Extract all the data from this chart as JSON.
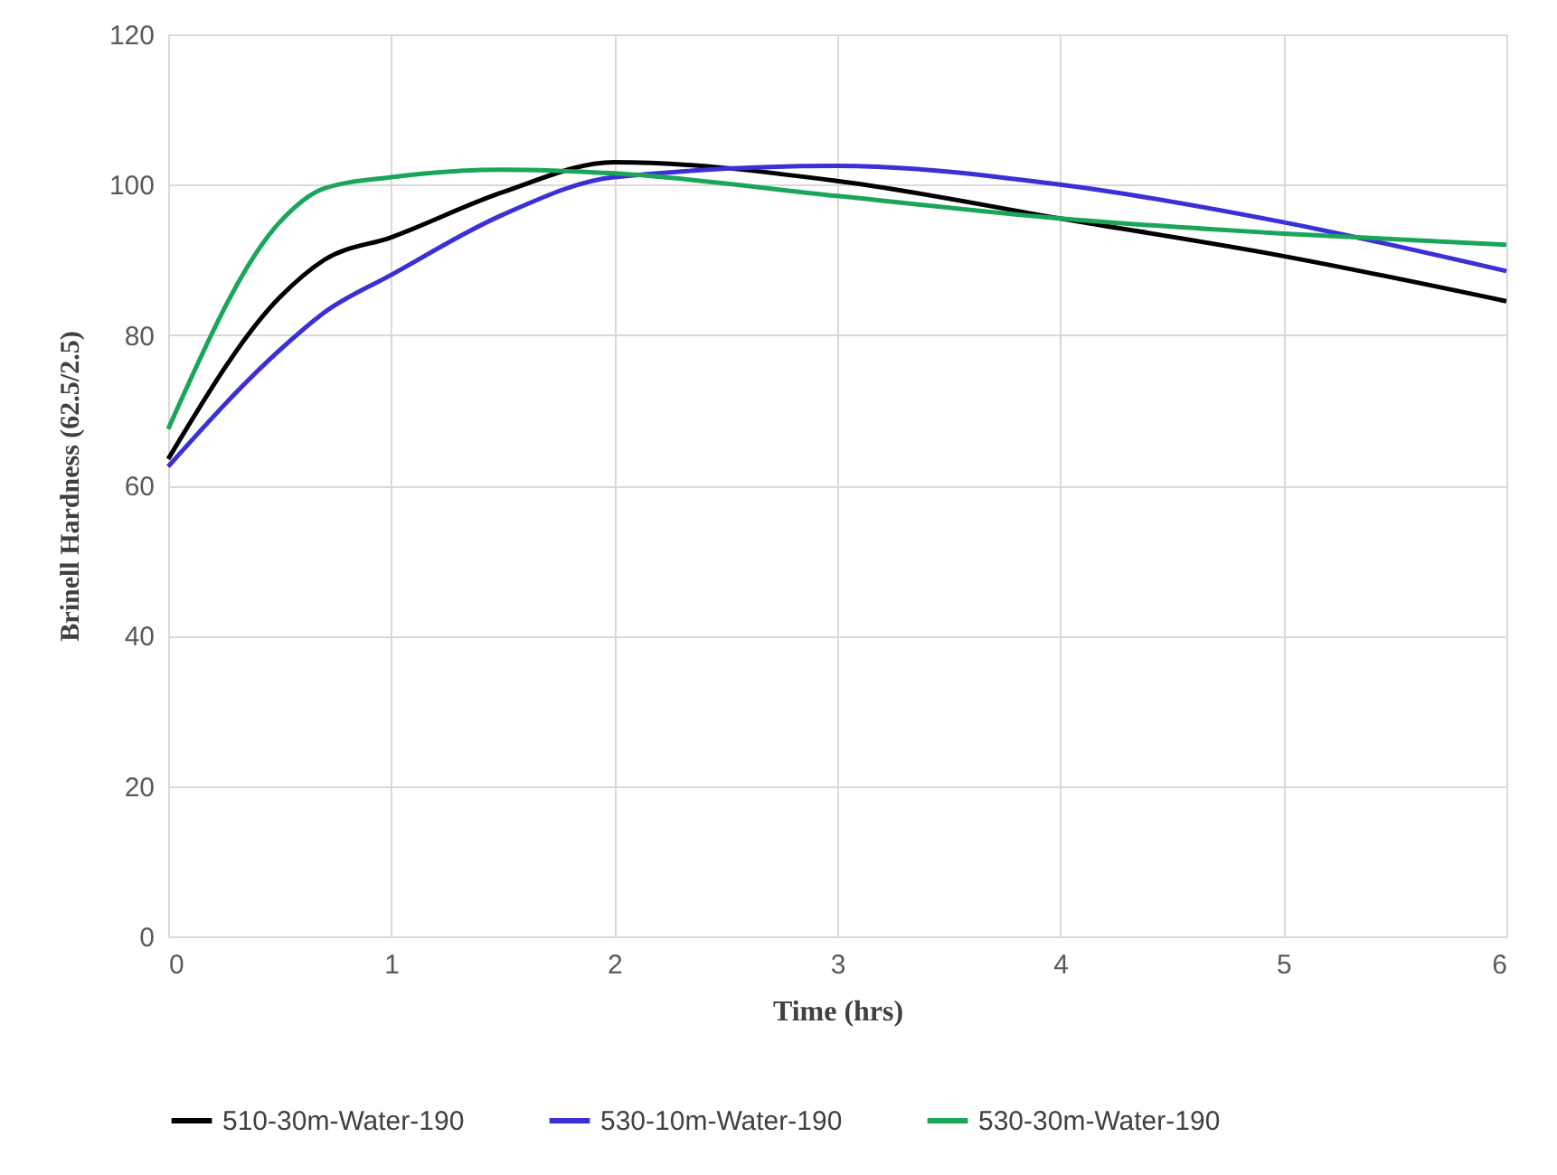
{
  "chart_data": {
    "type": "line",
    "xlabel": "Time (hrs)",
    "ylabel": "Brinell Hardness (62.5/2.5)",
    "x": [
      0,
      0.5,
      0.7,
      1,
      1.5,
      2,
      3,
      4,
      5,
      6
    ],
    "series": [
      {
        "name": "510-30m-Water-190",
        "color": "#000000",
        "values": [
          63.5,
          85,
          90,
          93,
          99,
          103,
          100.5,
          95.5,
          90.5,
          84.5
        ]
      },
      {
        "name": "530-10m-Water-190",
        "color": "#3b2fd6",
        "values": [
          62.5,
          78,
          83,
          88,
          96,
          101,
          102.5,
          100,
          95,
          88.5
        ]
      },
      {
        "name": "530-30m-Water-190",
        "color": "#1aa65a",
        "values": [
          67.5,
          95,
          99.5,
          101,
          102,
          101.5,
          98.5,
          95.5,
          93.5,
          92
        ]
      }
    ],
    "xlim": [
      0,
      6
    ],
    "xticks": [
      0,
      1,
      2,
      3,
      4,
      5,
      6
    ],
    "ylim": [
      0,
      120
    ],
    "yticks": [
      0,
      20,
      40,
      60,
      80,
      100,
      120
    ],
    "grid": true,
    "legend": "bottom",
    "marker": "none",
    "line_style": "solid"
  }
}
